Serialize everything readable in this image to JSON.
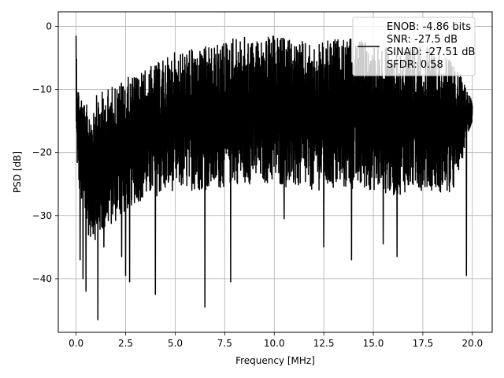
{
  "chart_data": {
    "type": "line",
    "title": "",
    "xlabel": "Frequency [MHz]",
    "ylabel": "PSD [dB]",
    "xlim": [
      -0.9,
      21.0
    ],
    "ylim": [
      -48.5,
      2.3
    ],
    "xticks": [
      0.0,
      2.5,
      5.0,
      7.5,
      10.0,
      12.5,
      15.0,
      17.5,
      20.0
    ],
    "xtick_labels": [
      "0.0",
      "2.5",
      "5.0",
      "7.5",
      "10.0",
      "12.5",
      "15.0",
      "17.5",
      "20.0"
    ],
    "yticks": [
      0,
      -10,
      -20,
      -30,
      -40
    ],
    "ytick_labels": [
      "0",
      "−10",
      "−20",
      "−30",
      "−40"
    ],
    "grid": true,
    "legend_position": "top-right",
    "legend_entries": [
      "ENOB: -4.86 bits",
      "SNR: -27.5 dB",
      "SINAD: -27.51 dB",
      "SFDR: 0.58"
    ],
    "series": [
      {
        "color": "#000000",
        "x_range": [
          0.0,
          20.0
        ],
        "envelope_x": [
          0.0,
          0.1,
          0.5,
          1.0,
          2.0,
          3.0,
          4.0,
          5.0,
          6.0,
          7.0,
          8.0,
          9.0,
          10.0,
          11.0,
          12.0,
          13.0,
          14.0,
          15.0,
          16.0,
          17.0,
          18.0,
          19.0,
          20.0
        ],
        "upper_envelope": [
          -1.5,
          -9.0,
          -12.5,
          -11.0,
          -9.0,
          -7.5,
          -6.0,
          -4.0,
          -3.5,
          -3.0,
          -1.5,
          -2.0,
          -1.5,
          -2.0,
          -3.0,
          -2.0,
          -2.0,
          -2.5,
          -3.5,
          -3.0,
          -3.5,
          -5.5,
          -11.0
        ],
        "typical_lower": [
          -20.0,
          -25.0,
          -33.0,
          -34.0,
          -31.0,
          -28.0,
          -27.0,
          -26.0,
          -26.0,
          -26.0,
          -25.0,
          -25.0,
          -25.0,
          -26.0,
          -26.0,
          -26.0,
          -26.0,
          -26.0,
          -27.0,
          -26.0,
          -26.0,
          -27.0,
          -15.0
        ],
        "deep_nulls": [
          {
            "x": 0.2,
            "y": -37.0
          },
          {
            "x": 0.35,
            "y": -40.0
          },
          {
            "x": 0.5,
            "y": -42.0
          },
          {
            "x": 1.1,
            "y": -46.5
          },
          {
            "x": 1.4,
            "y": -35.0
          },
          {
            "x": 2.3,
            "y": -36.5
          },
          {
            "x": 2.5,
            "y": -39.5
          },
          {
            "x": 2.7,
            "y": -40.5
          },
          {
            "x": 4.0,
            "y": -42.5
          },
          {
            "x": 6.5,
            "y": -44.5
          },
          {
            "x": 7.8,
            "y": -40.5
          },
          {
            "x": 10.5,
            "y": -30.5
          },
          {
            "x": 12.5,
            "y": -35.0
          },
          {
            "x": 13.9,
            "y": -37.0
          },
          {
            "x": 15.5,
            "y": -34.5
          },
          {
            "x": 16.2,
            "y": -36.5
          },
          {
            "x": 19.7,
            "y": -39.5
          }
        ]
      }
    ]
  }
}
